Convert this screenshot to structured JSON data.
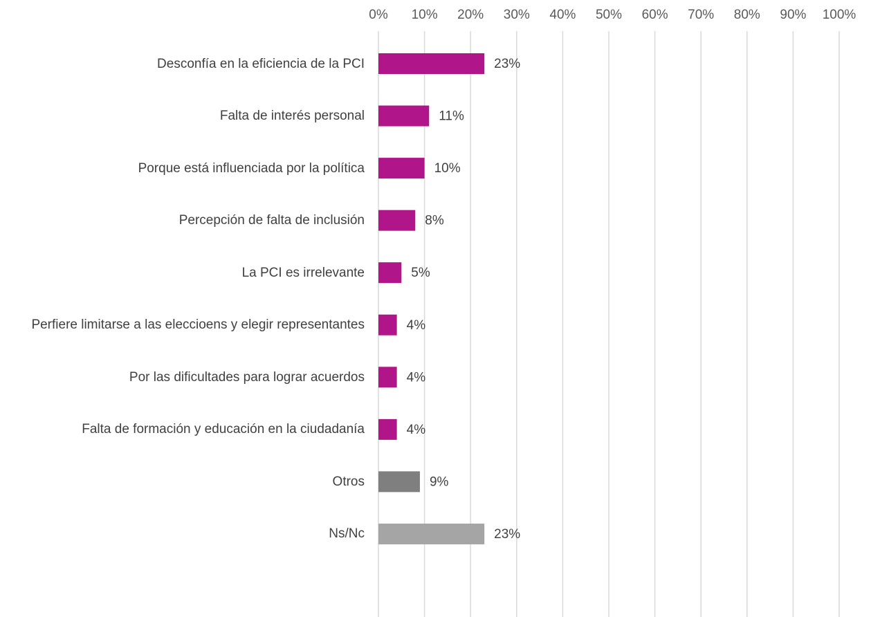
{
  "chart_data": {
    "type": "barh",
    "categories": [
      "Desconfía en la eficiencia de la PCI",
      "Falta de interés personal",
      "Porque está influenciada por la política",
      "Percepción de falta de inclusión",
      "La PCI es irrelevante",
      "Perfiere limitarse a las eleccioens y elegir representantes",
      "Por las dificultades para lograr acuerdos",
      "Falta de formación y educación en la ciudadanía",
      "Otros",
      "Ns/Nc"
    ],
    "values": [
      23,
      11,
      10,
      8,
      5,
      4,
      4,
      4,
      9,
      23
    ],
    "value_labels": [
      "23%",
      "11%",
      "10%",
      "8%",
      "5%",
      "4%",
      "4%",
      "4%",
      "9%",
      "23%"
    ],
    "colors": [
      "#b0168a",
      "#b0168a",
      "#b0168a",
      "#b0168a",
      "#b0168a",
      "#b0168a",
      "#b0168a",
      "#b0168a",
      "#7f7f7f",
      "#a5a5a5"
    ],
    "xlim": [
      0,
      100
    ],
    "xticks": [
      {
        "value": 0,
        "label": "0%"
      },
      {
        "value": 10,
        "label": "10%"
      },
      {
        "value": 20,
        "label": "20%"
      },
      {
        "value": 30,
        "label": "30%"
      },
      {
        "value": 40,
        "label": "40%"
      },
      {
        "value": 50,
        "label": "50%"
      },
      {
        "value": 60,
        "label": "60%"
      },
      {
        "value": 70,
        "label": "70%"
      },
      {
        "value": 80,
        "label": "80%"
      },
      {
        "value": 90,
        "label": "90%"
      },
      {
        "value": 100,
        "label": "100%"
      }
    ],
    "grid": true
  }
}
